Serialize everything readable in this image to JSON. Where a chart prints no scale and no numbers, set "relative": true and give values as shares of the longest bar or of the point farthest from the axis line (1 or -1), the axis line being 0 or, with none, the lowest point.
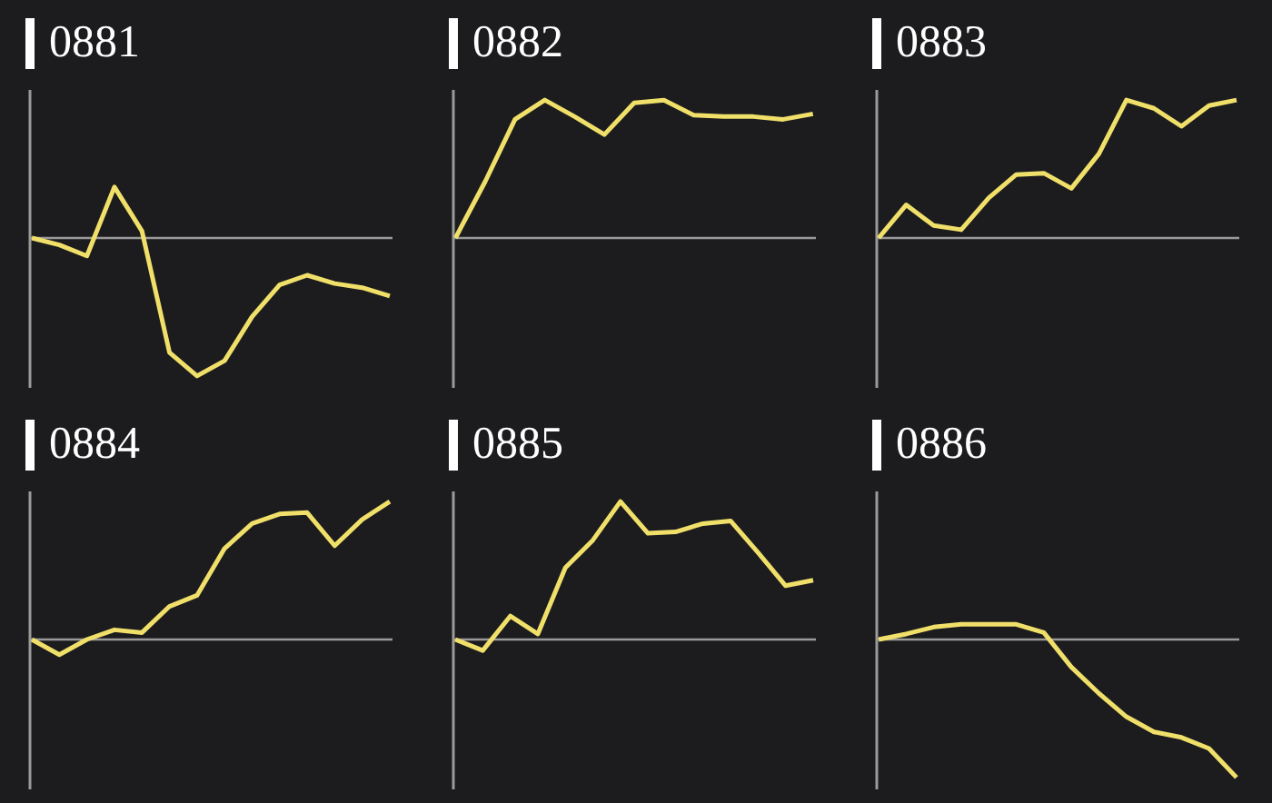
{
  "chart_data": [
    {
      "type": "line",
      "title": "0881",
      "relative": true,
      "color": "#f0e06a",
      "categories": [
        null,
        null,
        null,
        null,
        null,
        null,
        null,
        null,
        null,
        null,
        null,
        null,
        null,
        null
      ],
      "values": [
        0,
        -0.05,
        -0.13,
        0.37,
        0.05,
        -0.83,
        -1,
        -0.89,
        -0.57,
        -0.34,
        -0.27,
        -0.33,
        -0.36,
        -0.42
      ]
    },
    {
      "type": "line",
      "title": "0882",
      "relative": true,
      "color": "#f0e06a",
      "categories": [
        null,
        null,
        null,
        null,
        null,
        null,
        null,
        null,
        null,
        null,
        null,
        null,
        null
      ],
      "values": [
        0,
        0.41,
        0.86,
        1,
        0.88,
        0.75,
        0.98,
        1,
        0.89,
        0.88,
        0.88,
        0.86,
        0.9
      ]
    },
    {
      "type": "line",
      "title": "0883",
      "relative": true,
      "color": "#f0e06a",
      "categories": [
        null,
        null,
        null,
        null,
        null,
        null,
        null,
        null,
        null,
        null,
        null,
        null,
        null,
        null
      ],
      "values": [
        0,
        0.24,
        0.09,
        0.06,
        0.29,
        0.46,
        0.47,
        0.36,
        0.61,
        1,
        0.94,
        0.81,
        0.96,
        1
      ]
    },
    {
      "type": "line",
      "title": "0884",
      "relative": true,
      "color": "#f0e06a",
      "categories": [
        null,
        null,
        null,
        null,
        null,
        null,
        null,
        null,
        null,
        null,
        null,
        null,
        null,
        null
      ],
      "values": [
        0,
        -0.11,
        0,
        0.07,
        0.05,
        0.24,
        0.32,
        0.66,
        0.84,
        0.91,
        0.92,
        0.68,
        0.87,
        1
      ]
    },
    {
      "type": "line",
      "title": "0885",
      "relative": true,
      "color": "#f0e06a",
      "categories": [
        null,
        null,
        null,
        null,
        null,
        null,
        null,
        null,
        null,
        null,
        null,
        null,
        null,
        null
      ],
      "values": [
        0,
        -0.08,
        0.17,
        0.04,
        0.52,
        0.72,
        1,
        0.77,
        0.78,
        0.84,
        0.86,
        0.63,
        0.39,
        0.43
      ]
    },
    {
      "type": "line",
      "title": "0886",
      "relative": true,
      "color": "#f0e06a",
      "categories": [
        null,
        null,
        null,
        null,
        null,
        null,
        null,
        null,
        null,
        null,
        null,
        null,
        null,
        null
      ],
      "values": [
        0,
        0.04,
        0.09,
        0.11,
        0.11,
        0.11,
        0.05,
        -0.2,
        -0.39,
        -0.56,
        -0.67,
        -0.71,
        -0.79,
        -1
      ]
    }
  ]
}
